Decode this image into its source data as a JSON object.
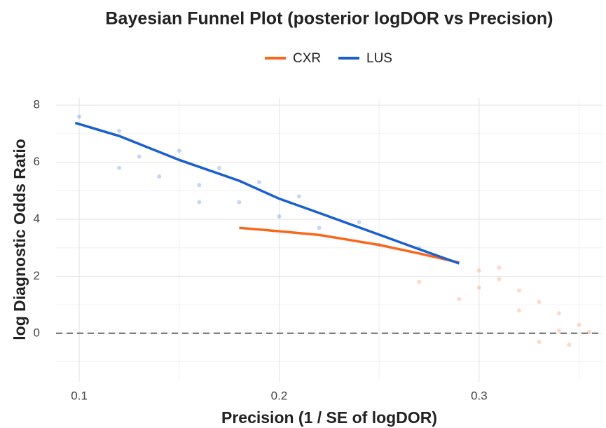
{
  "chart_data": {
    "type": "line",
    "title": "Bayesian Funnel Plot (posterior logDOR vs Precision)",
    "x_label": "Precision (1 / SE of logDOR)",
    "y_label": "log Diagnostic Odds Ratio",
    "series": [
      {
        "name": "CXR",
        "color": "#f8671a",
        "x": [
          0.18,
          0.2,
          0.22,
          0.25,
          0.27,
          0.29
        ],
        "values": [
          3.7,
          3.58,
          3.45,
          3.1,
          2.8,
          2.48
        ]
      },
      {
        "name": "LUS",
        "color": "#1a5fd0",
        "x": [
          0.098,
          0.12,
          0.15,
          0.18,
          0.2,
          0.22,
          0.25,
          0.27,
          0.29
        ],
        "values": [
          7.38,
          6.92,
          6.08,
          5.35,
          4.72,
          4.22,
          3.46,
          2.95,
          2.45
        ]
      }
    ],
    "scatter": [
      {
        "color": "#f8671a",
        "x": [
          0.3,
          0.31,
          0.32,
          0.33,
          0.34,
          0.35,
          0.355,
          0.3,
          0.32,
          0.34,
          0.29,
          0.33,
          0.27,
          0.31,
          0.345
        ],
        "values": [
          2.2,
          1.9,
          1.5,
          1.1,
          0.7,
          0.3,
          0.05,
          1.6,
          0.8,
          0.1,
          1.2,
          -0.3,
          1.8,
          2.3,
          -0.4
        ]
      },
      {
        "color": "#1a5fd0",
        "x": [
          0.1,
          0.12,
          0.13,
          0.14,
          0.15,
          0.16,
          0.17,
          0.18,
          0.19,
          0.2,
          0.21,
          0.22,
          0.24,
          0.25,
          0.27,
          0.12,
          0.16
        ],
        "values": [
          7.6,
          7.1,
          6.2,
          5.5,
          6.4,
          5.2,
          5.8,
          4.6,
          5.3,
          4.1,
          4.8,
          3.7,
          3.9,
          3.1,
          3.0,
          5.8,
          4.6
        ]
      }
    ],
    "hlines": [
      0
    ],
    "xlim": [
      0.0884,
      0.3617
    ],
    "ylim": [
      -1.7,
      8.25
    ],
    "xticks": [
      0.1,
      0.2,
      0.3
    ],
    "yticks": [
      0,
      2,
      4,
      6,
      8
    ],
    "xminor": [
      0.15,
      0.25,
      0.35
    ],
    "yminor": [
      -1,
      1,
      3,
      5,
      7
    ],
    "grid": true,
    "legend": "top"
  }
}
